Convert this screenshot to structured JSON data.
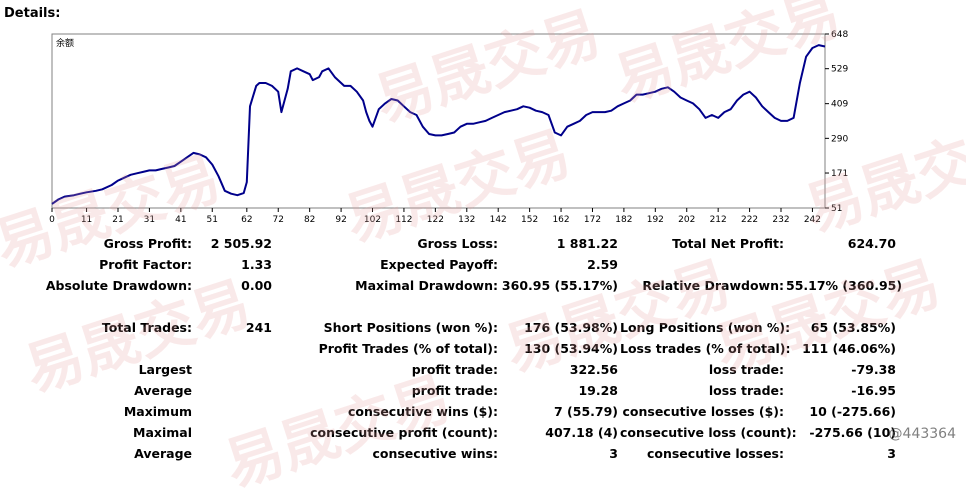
{
  "report": {
    "title": "Details:"
  },
  "chart_data": {
    "type": "line",
    "legend_label": "余额",
    "ylim": [
      51,
      648
    ],
    "xlim": [
      0,
      246
    ],
    "y_ticks": [
      648,
      529,
      409,
      290,
      171,
      51
    ],
    "x_ticks": [
      0,
      11,
      21,
      31,
      41,
      51,
      62,
      72,
      82,
      92,
      102,
      112,
      122,
      132,
      142,
      152,
      162,
      172,
      182,
      192,
      202,
      212,
      222,
      232,
      242
    ],
    "line_color": "#00008b",
    "series": [
      {
        "x": [
          0,
          2,
          4,
          7,
          9,
          11,
          14,
          16,
          19,
          21,
          23,
          25,
          27,
          29,
          31,
          33,
          35,
          37,
          39,
          41,
          43,
          45,
          47,
          49,
          51,
          53,
          55,
          57,
          59,
          61,
          62,
          63,
          65,
          66,
          68,
          70,
          72,
          73,
          75,
          76,
          78,
          80,
          82,
          83,
          85,
          86,
          88,
          90,
          92,
          93,
          95,
          97,
          99,
          100,
          101,
          102,
          104,
          106,
          108,
          110,
          112,
          114,
          116,
          118,
          120,
          122,
          124,
          126,
          128,
          130,
          132,
          134,
          136,
          138,
          140,
          142,
          144,
          146,
          148,
          150,
          152,
          154,
          156,
          158,
          160,
          162,
          164,
          166,
          168,
          170,
          172,
          174,
          176,
          178,
          180,
          182,
          184,
          186,
          188,
          190,
          192,
          194,
          196,
          198,
          200,
          202,
          204,
          206,
          208,
          210,
          212,
          214,
          216,
          218,
          220,
          222,
          224,
          226,
          228,
          230,
          232,
          234,
          236,
          238,
          240,
          242,
          244,
          246
        ],
        "y": [
          65,
          80,
          90,
          95,
          100,
          105,
          110,
          115,
          130,
          145,
          155,
          165,
          170,
          175,
          180,
          180,
          185,
          190,
          195,
          210,
          225,
          240,
          235,
          225,
          200,
          160,
          110,
          100,
          95,
          102,
          140,
          400,
          470,
          480,
          480,
          470,
          450,
          380,
          460,
          520,
          530,
          520,
          510,
          490,
          500,
          520,
          530,
          500,
          480,
          470,
          470,
          450,
          420,
          380,
          350,
          330,
          390,
          410,
          425,
          420,
          400,
          380,
          370,
          330,
          305,
          300,
          300,
          305,
          310,
          330,
          340,
          340,
          345,
          350,
          360,
          370,
          380,
          385,
          390,
          400,
          395,
          385,
          380,
          370,
          310,
          300,
          330,
          340,
          350,
          370,
          380,
          380,
          380,
          385,
          400,
          410,
          420,
          440,
          440,
          445,
          450,
          460,
          465,
          450,
          430,
          420,
          410,
          390,
          360,
          370,
          360,
          380,
          390,
          420,
          440,
          450,
          430,
          400,
          380,
          360,
          350,
          350,
          360,
          480,
          570,
          600,
          610,
          605
        ]
      }
    ]
  },
  "stats": {
    "gross_profit_label": "Gross Profit:",
    "gross_profit_value": "2 505.92",
    "gross_loss_label": "Gross Loss:",
    "gross_loss_value": "1 881.22",
    "total_net_profit_label": "Total Net Profit:",
    "total_net_profit_value": "624.70",
    "profit_factor_label": "Profit Factor:",
    "profit_factor_value": "1.33",
    "expected_payoff_label": "Expected Payoff:",
    "expected_payoff_value": "2.59",
    "absolute_drawdown_label": "Absolute Drawdown:",
    "absolute_drawdown_value": "0.00",
    "maximal_drawdown_label": "Maximal Drawdown:",
    "maximal_drawdown_value": "360.95 (55.17%)",
    "relative_drawdown_label": "Relative Drawdown:",
    "relative_drawdown_value": "55.17% (360.95)",
    "total_trades_label": "Total Trades:",
    "total_trades_value": "241",
    "short_positions_label": "Short Positions (won %):",
    "short_positions_value": "176 (53.98%)",
    "long_positions_label": "Long Positions (won %):",
    "long_positions_value": "65 (53.85%)",
    "profit_trades_label": "Profit Trades (% of total):",
    "profit_trades_value": "130 (53.94%)",
    "loss_trades_pct_label": "Loss trades (% of total):",
    "loss_trades_pct_value": "111 (46.06%)",
    "largest_label": "Largest",
    "largest_profit_label": "profit trade:",
    "largest_profit_value": "322.56",
    "largest_loss_label": "loss trade:",
    "largest_loss_value": "-79.38",
    "average_label": "Average",
    "average_profit_label": "profit trade:",
    "average_profit_value": "19.28",
    "average_loss_label": "loss trade:",
    "average_loss_value": "-16.95",
    "maximum_label": "Maximum",
    "max_cons_wins_label": "consecutive wins ($):",
    "max_cons_wins_value": "7 (55.79)",
    "max_cons_losses_label": "consecutive losses ($):",
    "max_cons_losses_value": "10 (-275.66)",
    "maximal_label": "Maximal",
    "maximal_cons_profit_label": "consecutive profit (count):",
    "maximal_cons_profit_value": "407.18 (4)",
    "maximal_cons_loss_label": "consecutive loss (count):",
    "maximal_cons_loss_value": "-275.66 (10)",
    "average2_label": "Average",
    "avg_cons_wins_label": "consecutive wins:",
    "avg_cons_wins_value": "3",
    "avg_cons_losses_label": "consecutive losses:",
    "avg_cons_losses_value": "3"
  },
  "watermark": {
    "text": "易晟交易",
    "user_mark": "@443364"
  }
}
